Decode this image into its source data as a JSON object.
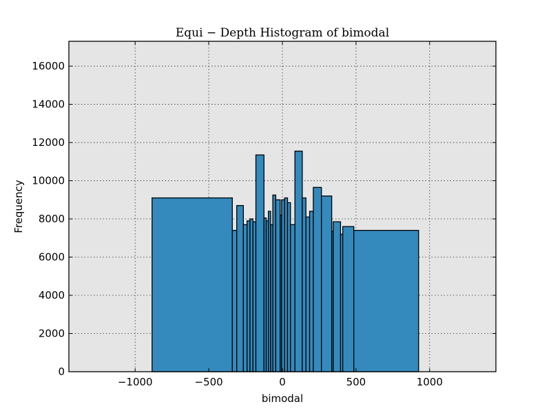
{
  "chart_data": {
    "type": "bar",
    "title": "Equi − Depth Histogram of bimodal",
    "xlabel": "bimodal",
    "ylabel": "Frequency",
    "xlim": [
      -1450,
      1450
    ],
    "ylim": [
      0,
      17300
    ],
    "xticks": [
      -1000,
      -500,
      0,
      500,
      1000
    ],
    "xtick_labels": [
      "−1000",
      "−500",
      "0",
      "500",
      "1000"
    ],
    "yticks": [
      0,
      2000,
      4000,
      6000,
      8000,
      10000,
      12000,
      14000,
      16000
    ],
    "ytick_labels": [
      "0",
      "2000",
      "4000",
      "6000",
      "8000",
      "10000",
      "12000",
      "14000",
      "16000"
    ],
    "grid": true,
    "bar_color": "#348abd",
    "background_color": "#e5e5e5",
    "bins": [
      {
        "x0": -885,
        "x1": -340,
        "value": 9100
      },
      {
        "x0": -340,
        "x1": -310,
        "value": 7400
      },
      {
        "x0": -310,
        "x1": -265,
        "value": 8700
      },
      {
        "x0": -265,
        "x1": -240,
        "value": 7700
      },
      {
        "x0": -240,
        "x1": -220,
        "value": 7900
      },
      {
        "x0": -220,
        "x1": -200,
        "value": 8000
      },
      {
        "x0": -200,
        "x1": -180,
        "value": 7850
      },
      {
        "x0": -180,
        "x1": -125,
        "value": 11350
      },
      {
        "x0": -125,
        "x1": -110,
        "value": 8050
      },
      {
        "x0": -110,
        "x1": -95,
        "value": 7900
      },
      {
        "x0": -95,
        "x1": -80,
        "value": 8400
      },
      {
        "x0": -80,
        "x1": -65,
        "value": 7700
      },
      {
        "x0": -65,
        "x1": -45,
        "value": 9250
      },
      {
        "x0": -45,
        "x1": -15,
        "value": 9000
      },
      {
        "x0": -15,
        "x1": -5,
        "value": 8200
      },
      {
        "x0": -5,
        "x1": 15,
        "value": 9000
      },
      {
        "x0": 15,
        "x1": 35,
        "value": 9100
      },
      {
        "x0": 35,
        "x1": 55,
        "value": 8850
      },
      {
        "x0": 55,
        "x1": 85,
        "value": 7700
      },
      {
        "x0": 85,
        "x1": 135,
        "value": 11550
      },
      {
        "x0": 135,
        "x1": 160,
        "value": 9100
      },
      {
        "x0": 160,
        "x1": 185,
        "value": 8100
      },
      {
        "x0": 185,
        "x1": 210,
        "value": 8400
      },
      {
        "x0": 210,
        "x1": 265,
        "value": 9650
      },
      {
        "x0": 265,
        "x1": 335,
        "value": 9200
      },
      {
        "x0": 335,
        "x1": 345,
        "value": 7350
      },
      {
        "x0": 345,
        "x1": 395,
        "value": 7850
      },
      {
        "x0": 395,
        "x1": 410,
        "value": 7200
      },
      {
        "x0": 410,
        "x1": 485,
        "value": 7600
      },
      {
        "x0": 485,
        "x1": 925,
        "value": 7400
      }
    ]
  }
}
